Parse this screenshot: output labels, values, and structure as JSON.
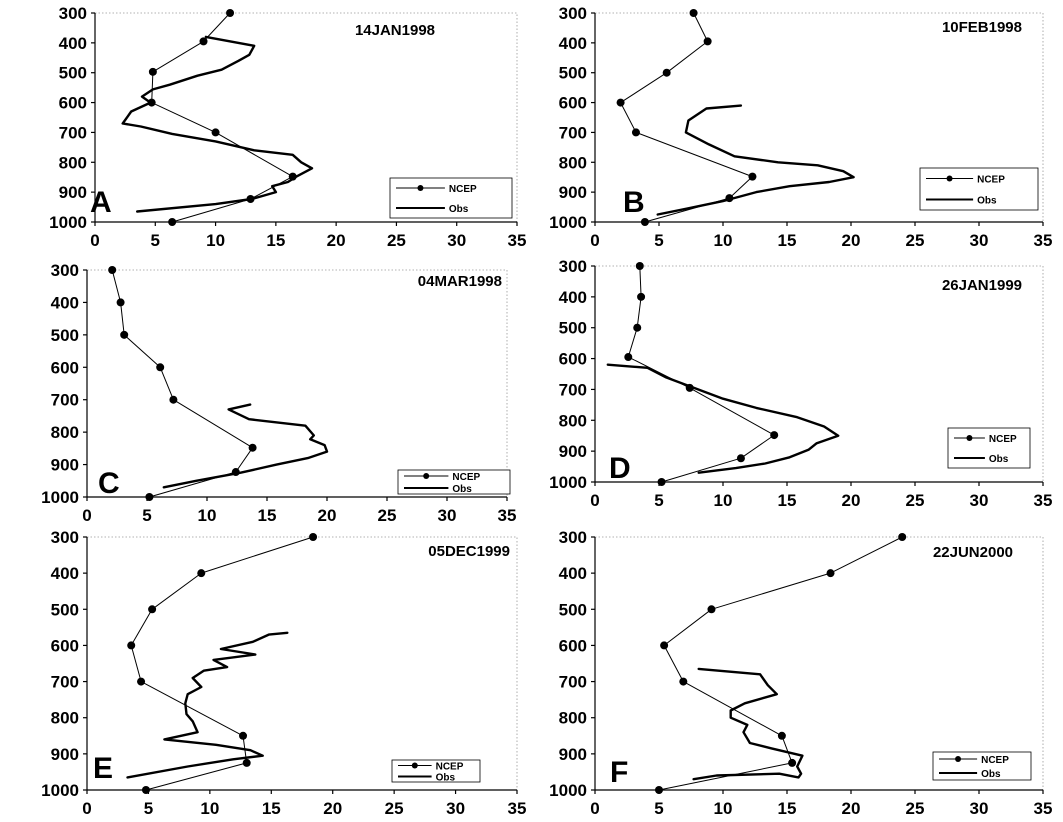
{
  "chart_data": [
    {
      "type": "line",
      "panel": "A",
      "title": "14JAN1998",
      "xlim": [
        0,
        35
      ],
      "ylim": [
        300,
        1000
      ],
      "y_inverted": true,
      "x_ticks": [
        "0",
        "5",
        "10",
        "15",
        "20",
        "25",
        "30",
        "35"
      ],
      "y_ticks": [
        "300",
        "400",
        "500",
        "600",
        "700",
        "800",
        "900",
        "1000"
      ],
      "legend": {
        "entries": [
          "NCEP",
          "Obs"
        ],
        "position": "bottom-right"
      },
      "series": [
        {
          "name": "NCEP",
          "marker": "circle",
          "points": [
            [
              11.2,
              300
            ],
            [
              9,
              395
            ],
            [
              4.8,
              497
            ],
            [
              4.7,
              600
            ],
            [
              10,
              700
            ],
            [
              16.4,
              848
            ],
            [
              12.9,
              923
            ],
            [
              6.4,
              1000
            ]
          ]
        },
        {
          "name": "Obs",
          "marker": "none",
          "points": [
            [
              9.2,
              380
            ],
            [
              13.2,
              410
            ],
            [
              12.8,
              440
            ],
            [
              11.9,
              460
            ],
            [
              10.5,
              490
            ],
            [
              8.5,
              510
            ],
            [
              6.2,
              540
            ],
            [
              4.8,
              556
            ],
            [
              3.9,
              580
            ],
            [
              4.6,
              600
            ],
            [
              3,
              630
            ],
            [
              2.3,
              670
            ],
            [
              3.8,
              680
            ],
            [
              6.4,
              705
            ],
            [
              10,
              730
            ],
            [
              13.2,
              760
            ],
            [
              16.4,
              775
            ],
            [
              17.1,
              800
            ],
            [
              18,
              820
            ],
            [
              16.7,
              848
            ],
            [
              16,
              866
            ],
            [
              14.7,
              880
            ],
            [
              15,
              900
            ],
            [
              13,
              923
            ],
            [
              10,
              940
            ],
            [
              3.5,
              965
            ]
          ]
        }
      ]
    },
    {
      "type": "line",
      "panel": "B",
      "title": "10FEB1998",
      "xlim": [
        0,
        35
      ],
      "ylim": [
        300,
        1000
      ],
      "y_inverted": true,
      "x_ticks": [
        "0",
        "5",
        "10",
        "15",
        "20",
        "25",
        "30",
        "35"
      ],
      "y_ticks": [
        "300",
        "400",
        "500",
        "600",
        "700",
        "800",
        "900",
        "1000"
      ],
      "legend": {
        "entries": [
          "NCEP",
          "Obs"
        ],
        "position": "bottom-right"
      },
      "series": [
        {
          "name": "NCEP",
          "marker": "circle",
          "points": [
            [
              7.7,
              300
            ],
            [
              8.8,
              395
            ],
            [
              5.6,
              500
            ],
            [
              2,
              600
            ],
            [
              3.2,
              700
            ],
            [
              12.3,
              848
            ],
            [
              10.5,
              920
            ],
            [
              3.9,
              1000
            ]
          ]
        },
        {
          "name": "Obs",
          "marker": "none",
          "points": [
            [
              11.4,
              610
            ],
            [
              8.7,
              620
            ],
            [
              7.3,
              660
            ],
            [
              7.1,
              700
            ],
            [
              8.9,
              740
            ],
            [
              10.9,
              780
            ],
            [
              14.3,
              800
            ],
            [
              17.4,
              810
            ],
            [
              19.4,
              830
            ],
            [
              20.2,
              850
            ],
            [
              18.3,
              866
            ],
            [
              15.2,
              880
            ],
            [
              12.6,
              900
            ],
            [
              10,
              930
            ],
            [
              7.2,
              955
            ],
            [
              4.9,
              975
            ]
          ]
        }
      ]
    },
    {
      "type": "line",
      "panel": "C",
      "title": "04MAR1998",
      "xlim": [
        0,
        35
      ],
      "ylim": [
        300,
        1000
      ],
      "y_inverted": true,
      "x_ticks": [
        "0",
        "5",
        "10",
        "15",
        "20",
        "25",
        "30",
        "35"
      ],
      "y_ticks": [
        "300",
        "400",
        "500",
        "600",
        "700",
        "800",
        "900",
        "1000"
      ],
      "legend": {
        "entries": [
          "NCEP",
          "Obs"
        ],
        "position": "bottom-right"
      },
      "series": [
        {
          "name": "NCEP",
          "marker": "circle",
          "points": [
            [
              2.1,
              300
            ],
            [
              2.8,
              400
            ],
            [
              3.1,
              500
            ],
            [
              6.1,
              600
            ],
            [
              7.2,
              700
            ],
            [
              13.8,
              848
            ],
            [
              12.4,
              923
            ],
            [
              5.2,
              1000
            ]
          ]
        },
        {
          "name": "Obs",
          "marker": "none",
          "points": [
            [
              13.6,
              715
            ],
            [
              11.8,
              730
            ],
            [
              13.5,
              760
            ],
            [
              18.2,
              780
            ],
            [
              18.9,
              810
            ],
            [
              18.6,
              822
            ],
            [
              19.8,
              840
            ],
            [
              20,
              860
            ],
            [
              18.4,
              880
            ],
            [
              15.8,
              900
            ],
            [
              12.8,
              925
            ],
            [
              9.1,
              950
            ],
            [
              6.4,
              970
            ]
          ]
        }
      ]
    },
    {
      "type": "line",
      "panel": "D",
      "title": "26JAN1999",
      "xlim": [
        0,
        35
      ],
      "ylim": [
        300,
        1000
      ],
      "y_inverted": true,
      "x_ticks": [
        "0",
        "5",
        "10",
        "15",
        "20",
        "25",
        "30",
        "35"
      ],
      "y_ticks": [
        "300",
        "400",
        "500",
        "600",
        "700",
        "800",
        "900",
        "1000"
      ],
      "legend": {
        "entries": [
          "NCEP",
          "Obs"
        ],
        "position": "bottom-right"
      },
      "series": [
        {
          "name": "NCEP",
          "marker": "circle",
          "points": [
            [
              3.5,
              300
            ],
            [
              3.6,
              400
            ],
            [
              3.3,
              500
            ],
            [
              2.6,
              595
            ],
            [
              7.4,
              695
            ],
            [
              14,
              848
            ],
            [
              11.4,
              923
            ],
            [
              5.2,
              1000
            ]
          ]
        },
        {
          "name": "Obs",
          "marker": "none",
          "points": [
            [
              1,
              620
            ],
            [
              4.1,
              630
            ],
            [
              5.5,
              660
            ],
            [
              7.4,
              690
            ],
            [
              10,
              730
            ],
            [
              12.6,
              760
            ],
            [
              15.8,
              790
            ],
            [
              17.9,
              820
            ],
            [
              19,
              850
            ],
            [
              17.3,
              875
            ],
            [
              16.7,
              895
            ],
            [
              15.2,
              920
            ],
            [
              13.3,
              940
            ],
            [
              11,
              955
            ],
            [
              8.1,
              970
            ]
          ]
        }
      ]
    },
    {
      "type": "line",
      "panel": "E",
      "title": "05DEC1999",
      "xlim": [
        0,
        35
      ],
      "ylim": [
        300,
        1000
      ],
      "y_inverted": true,
      "x_ticks": [
        "0",
        "5",
        "10",
        "15",
        "20",
        "25",
        "30",
        "35"
      ],
      "y_ticks": [
        "300",
        "400",
        "500",
        "600",
        "700",
        "800",
        "900",
        "1000"
      ],
      "legend": {
        "entries": [
          "NCEP",
          "Obs"
        ],
        "position": "bottom-right"
      },
      "series": [
        {
          "name": "NCEP",
          "marker": "circle",
          "points": [
            [
              18.4,
              300
            ],
            [
              9.3,
              400
            ],
            [
              5.3,
              500
            ],
            [
              3.6,
              600
            ],
            [
              4.4,
              700
            ],
            [
              12.7,
              850
            ],
            [
              13,
              925
            ],
            [
              4.8,
              1000
            ]
          ]
        },
        {
          "name": "Obs",
          "marker": "none",
          "points": [
            [
              16.3,
              565
            ],
            [
              14.8,
              570
            ],
            [
              13.5,
              590
            ],
            [
              10.9,
              610
            ],
            [
              13.7,
              625
            ],
            [
              10.3,
              640
            ],
            [
              11.4,
              660
            ],
            [
              9.5,
              670
            ],
            [
              8.6,
              690
            ],
            [
              9.3,
              715
            ],
            [
              8.2,
              735
            ],
            [
              8,
              760
            ],
            [
              8.1,
              790
            ],
            [
              8.6,
              810
            ],
            [
              9,
              840
            ],
            [
              6.3,
              860
            ],
            [
              10.5,
              875
            ],
            [
              13.3,
              890
            ],
            [
              14.3,
              905
            ],
            [
              11.9,
              915
            ],
            [
              8.2,
              935
            ],
            [
              3.3,
              965
            ]
          ]
        }
      ]
    },
    {
      "type": "line",
      "panel": "F",
      "title": "22JUN2000",
      "xlim": [
        0,
        35
      ],
      "ylim": [
        300,
        1000
      ],
      "y_inverted": true,
      "x_ticks": [
        "0",
        "5",
        "10",
        "15",
        "20",
        "25",
        "30",
        "35"
      ],
      "y_ticks": [
        "300",
        "400",
        "500",
        "600",
        "700",
        "800",
        "900",
        "1000"
      ],
      "legend": {
        "entries": [
          "NCEP",
          "Obs"
        ],
        "position": "bottom-right"
      },
      "series": [
        {
          "name": "NCEP",
          "marker": "circle",
          "points": [
            [
              24,
              300
            ],
            [
              18.4,
              400
            ],
            [
              9.1,
              500
            ],
            [
              5.4,
              600
            ],
            [
              6.9,
              700
            ],
            [
              14.6,
              850
            ],
            [
              15.4,
              925
            ],
            [
              5,
              1000
            ]
          ]
        },
        {
          "name": "Obs",
          "marker": "none",
          "points": [
            [
              8.1,
              665
            ],
            [
              12.9,
              680
            ],
            [
              13.5,
              710
            ],
            [
              14.2,
              735
            ],
            [
              11.7,
              760
            ],
            [
              10.6,
              780
            ],
            [
              10.6,
              800
            ],
            [
              11.9,
              820
            ],
            [
              11.6,
              840
            ],
            [
              12.1,
              870
            ],
            [
              13.8,
              885
            ],
            [
              16.2,
              905
            ],
            [
              15.8,
              935
            ],
            [
              16.1,
              955
            ],
            [
              15.9,
              965
            ],
            [
              14.4,
              955
            ],
            [
              9.5,
              960
            ],
            [
              7.7,
              970
            ]
          ]
        }
      ]
    }
  ]
}
